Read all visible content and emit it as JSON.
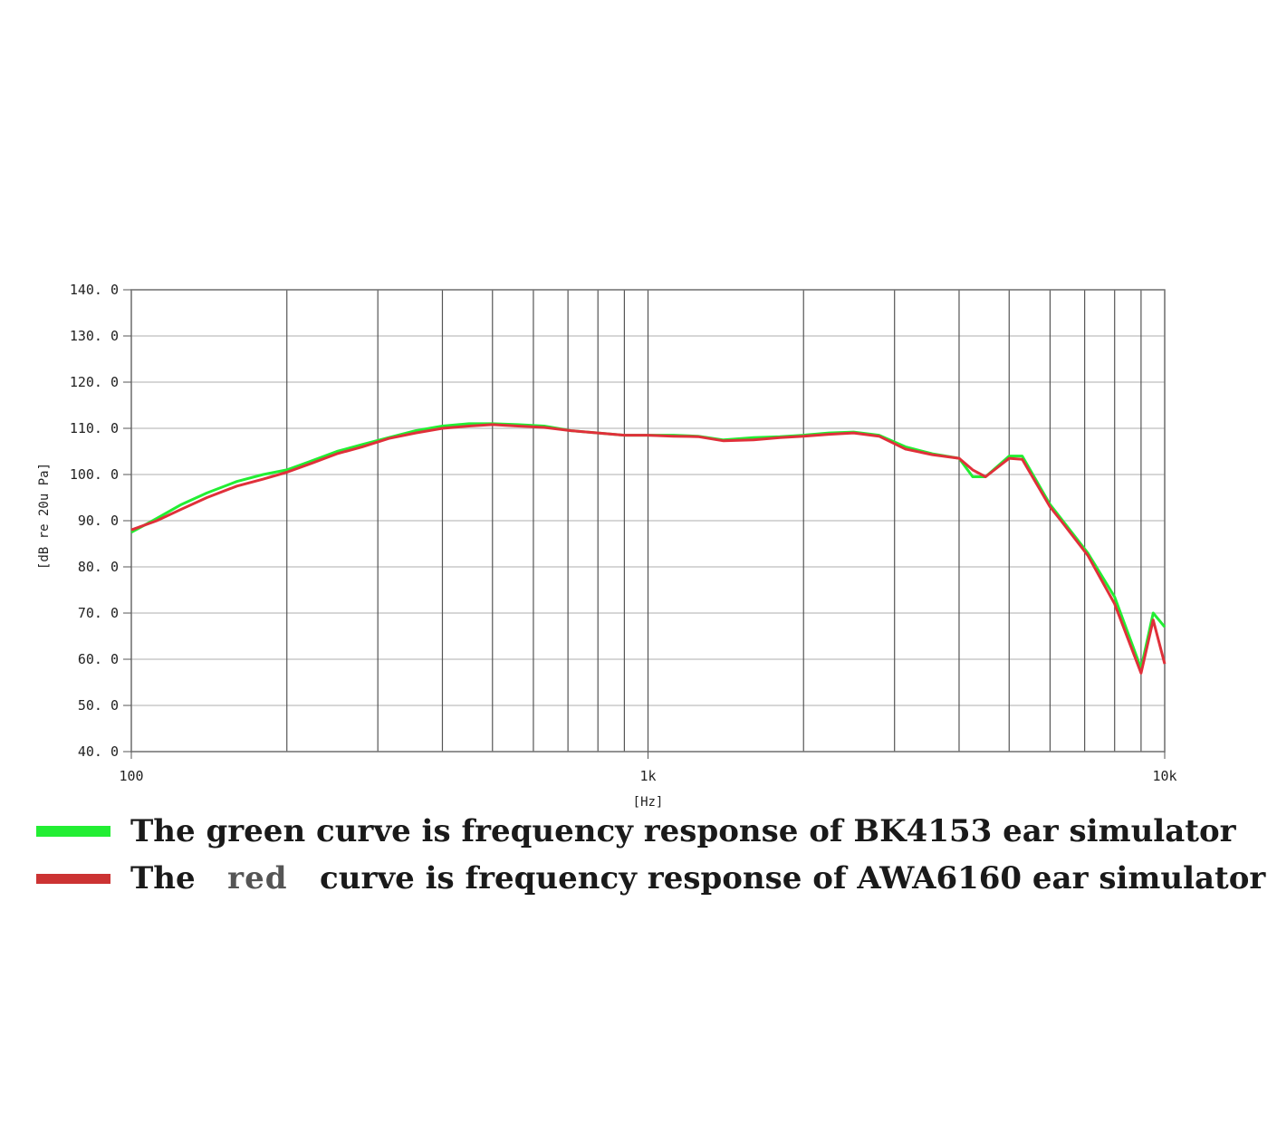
{
  "chart_data": {
    "type": "line",
    "xscale": "log",
    "xlim": [
      100,
      10000
    ],
    "ylim": [
      40,
      140
    ],
    "xlabel": "[Hz]",
    "ylabel": "[dB re 20u Pa]",
    "yticks": [
      40,
      50,
      60,
      70,
      80,
      90,
      100,
      110,
      120,
      130,
      140
    ],
    "ytick_labels": [
      "40. 0",
      "50. 0",
      "60. 0",
      "70. 0",
      "80. 0",
      "90. 0",
      "100. 0",
      "110. 0",
      "120. 0",
      "130. 0",
      "140. 0"
    ],
    "xtick_labels": [
      {
        "x": 100,
        "label": "100"
      },
      {
        "x": 1000,
        "label": "1k"
      },
      {
        "x": 10000,
        "label": "10k"
      }
    ],
    "x_gridlines": [
      100,
      200,
      300,
      400,
      500,
      600,
      700,
      800,
      900,
      1000,
      2000,
      3000,
      4000,
      5000,
      6000,
      7000,
      8000,
      9000,
      10000
    ],
    "grid": true,
    "series": [
      {
        "color": "#22ee33",
        "x": [
          100,
          112,
          125,
          140,
          160,
          180,
          200,
          224,
          250,
          280,
          315,
          355,
          400,
          450,
          500,
          560,
          630,
          710,
          800,
          900,
          1000,
          1120,
          1250,
          1400,
          1600,
          1800,
          2000,
          2240,
          2500,
          2800,
          3150,
          3550,
          4000,
          4250,
          4500,
          5000,
          5300,
          6000,
          6300,
          7100,
          8000,
          9000,
          9500,
          10000
        ],
        "y": [
          87.5,
          90.5,
          93.5,
          96,
          98.5,
          100,
          101,
          103,
          105,
          106.5,
          108,
          109.5,
          110.5,
          111,
          111,
          110.8,
          110.5,
          109.5,
          109,
          108.5,
          108.5,
          108.5,
          108.3,
          107.5,
          108,
          108.2,
          108.5,
          109,
          109.2,
          108.5,
          106,
          104.5,
          103.5,
          99.5,
          99.5,
          104,
          104,
          93.5,
          90.5,
          83,
          73.5,
          58,
          70,
          67
        ]
      },
      {
        "color": "#e0303a",
        "x": [
          100,
          112,
          125,
          140,
          160,
          180,
          200,
          224,
          250,
          280,
          315,
          355,
          400,
          450,
          500,
          560,
          630,
          710,
          800,
          900,
          1000,
          1120,
          1250,
          1400,
          1600,
          1800,
          2000,
          2240,
          2500,
          2800,
          3150,
          3550,
          4000,
          4250,
          4500,
          5000,
          5300,
          6000,
          6300,
          7100,
          8000,
          9000,
          9500,
          10000
        ],
        "y": [
          88,
          90,
          92.5,
          95,
          97.5,
          99,
          100.5,
          102.5,
          104.5,
          106,
          107.8,
          109,
          110,
          110.5,
          110.8,
          110.5,
          110.2,
          109.5,
          109,
          108.5,
          108.5,
          108.3,
          108.2,
          107.3,
          107.5,
          108,
          108.3,
          108.7,
          109,
          108.3,
          105.5,
          104.3,
          103.5,
          101,
          99.5,
          103.5,
          103.3,
          93,
          90,
          82.5,
          72,
          57,
          68.5,
          59
        ]
      }
    ]
  },
  "legend": {
    "green_text": "The green curve is frequency response of BK4153 ear simulator",
    "red_prefix": "The",
    "red_word": "red",
    "red_suffix": "curve is frequency response of AWA6160 ear simulator",
    "green_color": "#22ee33",
    "red_color": "#cc3333"
  }
}
